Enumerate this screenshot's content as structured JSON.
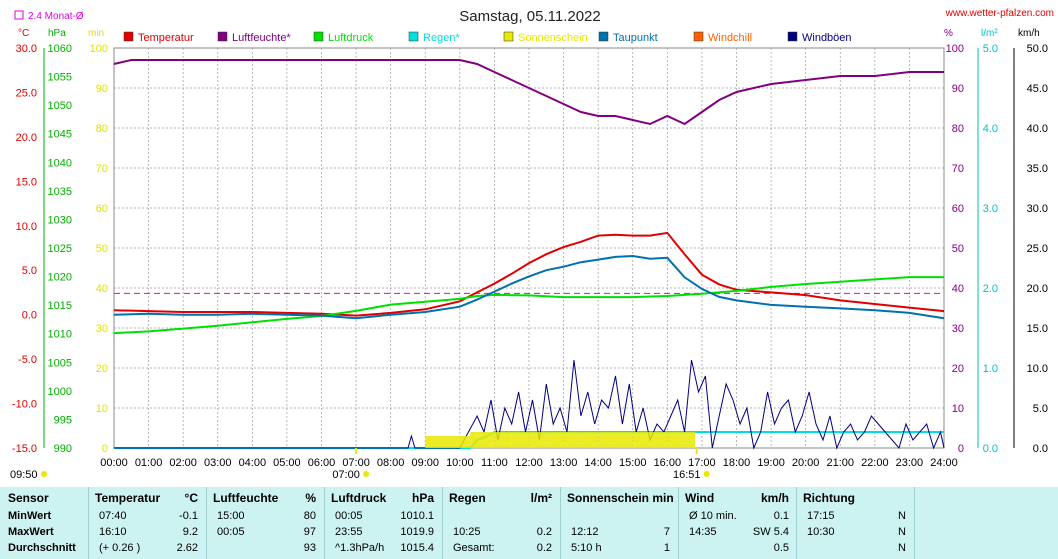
{
  "title": "Samstag, 05.11.2022",
  "website": "www.wetter-pfalzen.com",
  "monat_label": "2.4 Monat-Ø",
  "axis_units": {
    "temp": "°C",
    "pressure": "hPa",
    "minutes": "min",
    "humidity": "%",
    "rain": "l/m²",
    "wind": "km/h"
  },
  "legend": [
    {
      "label": "Temperatur",
      "color": "#e00000"
    },
    {
      "label": "Luftfeuchte*",
      "color": "#800080"
    },
    {
      "label": "Luftdruck",
      "color": "#00e000"
    },
    {
      "label": "Regen*",
      "color": "#00e0e0"
    },
    {
      "label": "Sonnenschein",
      "color": "#e8e800"
    },
    {
      "label": "Taupunkt",
      "color": "#0070b0"
    },
    {
      "label": "Windchill",
      "color": "#ff6000"
    },
    {
      "label": "Windböen",
      "color": "#000080"
    }
  ],
  "sunrise": "07:00",
  "sunset": "16:51",
  "first_time": "09:50",
  "chart_data": {
    "type": "line",
    "x_ticks": [
      "00:00",
      "01:00",
      "02:00",
      "03:00",
      "04:00",
      "05:00",
      "06:00",
      "07:00",
      "08:00",
      "09:00",
      "10:00",
      "11:00",
      "12:00",
      "13:00",
      "14:00",
      "15:00",
      "16:00",
      "17:00",
      "18:00",
      "19:00",
      "20:00",
      "21:00",
      "22:00",
      "23:00",
      "24:00"
    ],
    "axes": {
      "temp": {
        "range": [
          -15,
          30
        ],
        "ticks": [
          "30.0",
          "25.0",
          "20.0",
          "15.0",
          "10.0",
          "5.0",
          "0.0",
          "-5.0",
          "-10.0",
          "-15.0"
        ]
      },
      "pressure": {
        "range": [
          990,
          1060
        ],
        "ticks": [
          "1060",
          "1055",
          "1050",
          "1045",
          "1040",
          "1035",
          "1030",
          "1025",
          "1020",
          "1015",
          "1010",
          "1005",
          "1000",
          "995",
          "990"
        ]
      },
      "minutes": {
        "range": [
          0,
          100
        ],
        "ticks": [
          "100",
          "90",
          "80",
          "70",
          "60",
          "50",
          "40",
          "30",
          "20",
          "10",
          "0"
        ]
      },
      "humidity": {
        "range": [
          0,
          100
        ],
        "ticks": [
          "100",
          "90",
          "80",
          "70",
          "60",
          "50",
          "40",
          "30",
          "20",
          "10",
          "0"
        ]
      },
      "rain": {
        "range": [
          0,
          5
        ],
        "ticks": [
          "5.0",
          "4.0",
          "3.0",
          "2.0",
          "1.0",
          "0.0"
        ]
      },
      "wind": {
        "range": [
          0,
          50
        ],
        "ticks": [
          "50.0",
          "45.0",
          "40.0",
          "35.0",
          "30.0",
          "25.0",
          "20.0",
          "15.0",
          "10.0",
          "5.0",
          "0.0"
        ]
      }
    },
    "monthly_mean_temp": 2.4,
    "series": [
      {
        "name": "Temperatur",
        "color": "#e00000",
        "axis": "temp",
        "x": [
          0,
          1,
          2,
          3,
          4,
          5,
          6,
          7,
          8,
          9,
          10,
          10.5,
          11,
          11.5,
          12,
          12.5,
          13,
          13.5,
          14,
          14.5,
          15,
          15.5,
          16,
          16.5,
          17,
          17.5,
          18,
          19,
          20,
          21,
          22,
          23,
          24
        ],
        "y": [
          0.5,
          0.4,
          0.3,
          0.3,
          0.3,
          0.2,
          0.1,
          -0.1,
          0.2,
          0.6,
          1.5,
          2.5,
          3.5,
          4.6,
          5.8,
          6.8,
          7.6,
          8.2,
          8.9,
          9.0,
          8.9,
          8.9,
          9.2,
          6.8,
          4.5,
          3.4,
          2.8,
          2.5,
          2.2,
          1.6,
          1.2,
          0.8,
          0.4
        ]
      },
      {
        "name": "Luftfeuchte*",
        "color": "#800080",
        "axis": "humidity",
        "x": [
          0,
          0.5,
          1,
          2,
          3,
          4,
          5,
          6,
          7,
          8,
          9,
          10,
          10.5,
          11,
          11.5,
          12,
          12.5,
          13,
          13.5,
          14,
          14.5,
          15,
          15.5,
          16,
          16.5,
          17,
          17.5,
          18,
          19,
          20,
          21,
          22,
          23,
          24
        ],
        "y": [
          96,
          97,
          97,
          97,
          97,
          97,
          97,
          97,
          97,
          97,
          97,
          97,
          96,
          94,
          92,
          90,
          88,
          86,
          84,
          83,
          83,
          82,
          81,
          83,
          81,
          84,
          87,
          89,
          91,
          92,
          93,
          93,
          94,
          94
        ]
      },
      {
        "name": "Luftdruck",
        "color": "#00e000",
        "axis": "pressure",
        "x": [
          0,
          1,
          2,
          3,
          4,
          5,
          6,
          7,
          8,
          9,
          10,
          10.5,
          11,
          12,
          13,
          14,
          15,
          16,
          17,
          18,
          19,
          20,
          21,
          22,
          23,
          24
        ],
        "y": [
          1010.1,
          1010.4,
          1010.9,
          1011.4,
          1012.0,
          1012.6,
          1013.1,
          1014.0,
          1015.1,
          1015.6,
          1016.1,
          1016.6,
          1016.8,
          1016.7,
          1016.4,
          1016.4,
          1016.4,
          1016.6,
          1017.0,
          1017.5,
          1018.2,
          1018.7,
          1019.1,
          1019.5,
          1019.9,
          1019.9
        ]
      },
      {
        "name": "Taupunkt",
        "color": "#0070b0",
        "axis": "temp",
        "x": [
          0,
          1,
          2,
          3,
          4,
          5,
          6,
          7,
          8,
          9,
          10,
          10.5,
          11,
          11.5,
          12,
          12.5,
          13,
          13.5,
          14,
          14.5,
          15,
          15.5,
          16,
          16.5,
          17,
          17.5,
          18,
          19,
          20,
          21,
          22,
          23,
          24
        ],
        "y": [
          0.0,
          0.1,
          0.0,
          0.0,
          0.1,
          0.0,
          -0.1,
          -0.4,
          0.0,
          0.3,
          0.9,
          1.7,
          2.6,
          3.5,
          4.3,
          5.0,
          5.4,
          5.9,
          6.2,
          6.5,
          6.6,
          6.3,
          6.4,
          4.2,
          2.9,
          2.0,
          1.6,
          1.1,
          0.9,
          0.7,
          0.5,
          0.2,
          -0.4
        ]
      },
      {
        "name": "Regen*",
        "color": "#00e0e0",
        "axis": "rain",
        "x": [
          0,
          10.3,
          10.5,
          10.8,
          11,
          12,
          13,
          14,
          15,
          16,
          17,
          18,
          19,
          20,
          21,
          22,
          23,
          24
        ],
        "y": [
          0,
          0,
          0.1,
          0.15,
          0.2,
          0.2,
          0.2,
          0.2,
          0.2,
          0.2,
          0.2,
          0.2,
          0.2,
          0.2,
          0.2,
          0.2,
          0.2,
          0.2
        ]
      },
      {
        "name": "Windböen",
        "color": "#000080",
        "axis": "wind",
        "x": [
          0,
          8.5,
          8.6,
          8.7,
          10,
          10.5,
          10.7,
          10.9,
          11.1,
          11.3,
          11.5,
          11.7,
          11.9,
          12.1,
          12.3,
          12.5,
          12.7,
          12.9,
          13.1,
          13.3,
          13.5,
          13.7,
          13.9,
          14.1,
          14.3,
          14.5,
          14.7,
          14.9,
          15.1,
          15.3,
          15.5,
          15.7,
          15.9,
          16.1,
          16.3,
          16.5,
          16.7,
          16.9,
          17.1,
          17.3,
          17.5,
          17.7,
          17.9,
          18.1,
          18.3,
          18.5,
          18.7,
          18.9,
          19.1,
          19.3,
          19.5,
          19.7,
          19.9,
          20.1,
          20.3,
          20.5,
          20.7,
          20.9,
          21.1,
          21.3,
          21.5,
          21.7,
          21.9,
          22.1,
          22.3,
          22.5,
          22.7,
          22.9,
          23.1,
          23.3,
          23.5,
          23.7,
          23.9,
          24
        ],
        "y": [
          0,
          0,
          1.5,
          0,
          0,
          4,
          2,
          6,
          1,
          5,
          3,
          7,
          2,
          6,
          1,
          8,
          3,
          5,
          2,
          11,
          4,
          7,
          3,
          6,
          5,
          9,
          3,
          8,
          2,
          5,
          1,
          3,
          2,
          4,
          6,
          2,
          11,
          7,
          9,
          0,
          4,
          8,
          6,
          3,
          5,
          0,
          2,
          7,
          3,
          5,
          6,
          2,
          4,
          7,
          3,
          1,
          4,
          0,
          2,
          3,
          1,
          2,
          4,
          3,
          2,
          1,
          0,
          3,
          1,
          2,
          3,
          0,
          2,
          0
        ]
      },
      {
        "name": "Sonnenschein",
        "color": "#e8e800",
        "axis": "minutes",
        "x": [
          9,
          10.3,
          10.5,
          11,
          11.5,
          12,
          12.5,
          13,
          13.5,
          14,
          14.5,
          15,
          15.5,
          16,
          16.5,
          16.8
        ],
        "y": [
          3,
          4,
          4,
          4,
          4,
          4,
          4,
          4,
          4,
          4,
          4,
          4,
          4,
          4,
          4,
          0
        ]
      }
    ]
  },
  "stats": {
    "headers": [
      "Sensor",
      "Temperatur",
      "°C",
      "Luftfeuchte",
      "%",
      "Luftdruck",
      "hPa",
      "Regen",
      "l/m²",
      "Sonnenschein min",
      "Wind",
      "km/h",
      "Richtung"
    ],
    "rows": [
      {
        "label": "MinWert",
        "temp_time": "07:40",
        "temp_val": "-0.1",
        "hum_time": "15:00",
        "hum_val": "80",
        "press_time": "00:05",
        "press_val": "1010.1",
        "rain_time": "",
        "rain_val": "",
        "sun_time": "",
        "sun_val": "",
        "wind_time": "Ø 10 min.",
        "wind_val": "0.1",
        "dir_time": "17:15",
        "dir_val": "N"
      },
      {
        "label": "MaxWert",
        "temp_time": "16:10",
        "temp_val": "9.2",
        "hum_time": "00:05",
        "hum_val": "97",
        "press_time": "23:55",
        "press_val": "1019.9",
        "rain_time": "10:25",
        "rain_val": "0.2",
        "sun_time": "12:12",
        "sun_val": "7",
        "wind_time": "14:35",
        "wind_val": "SW 5.4",
        "dir_time": "10:30",
        "dir_val": "N"
      },
      {
        "label": "Durchschnitt",
        "temp_time": "(+ 0.26 )",
        "temp_val": "2.62",
        "hum_time": "",
        "hum_val": "93",
        "press_time": "^1.3hPa/h",
        "press_val": "1015.4",
        "rain_time": "Gesamt:",
        "rain_val": "0.2",
        "sun_time": "5:10 h",
        "sun_val": "1",
        "wind_time": "",
        "wind_val": "0.5",
        "dir_time": "",
        "dir_val": "N"
      }
    ]
  }
}
